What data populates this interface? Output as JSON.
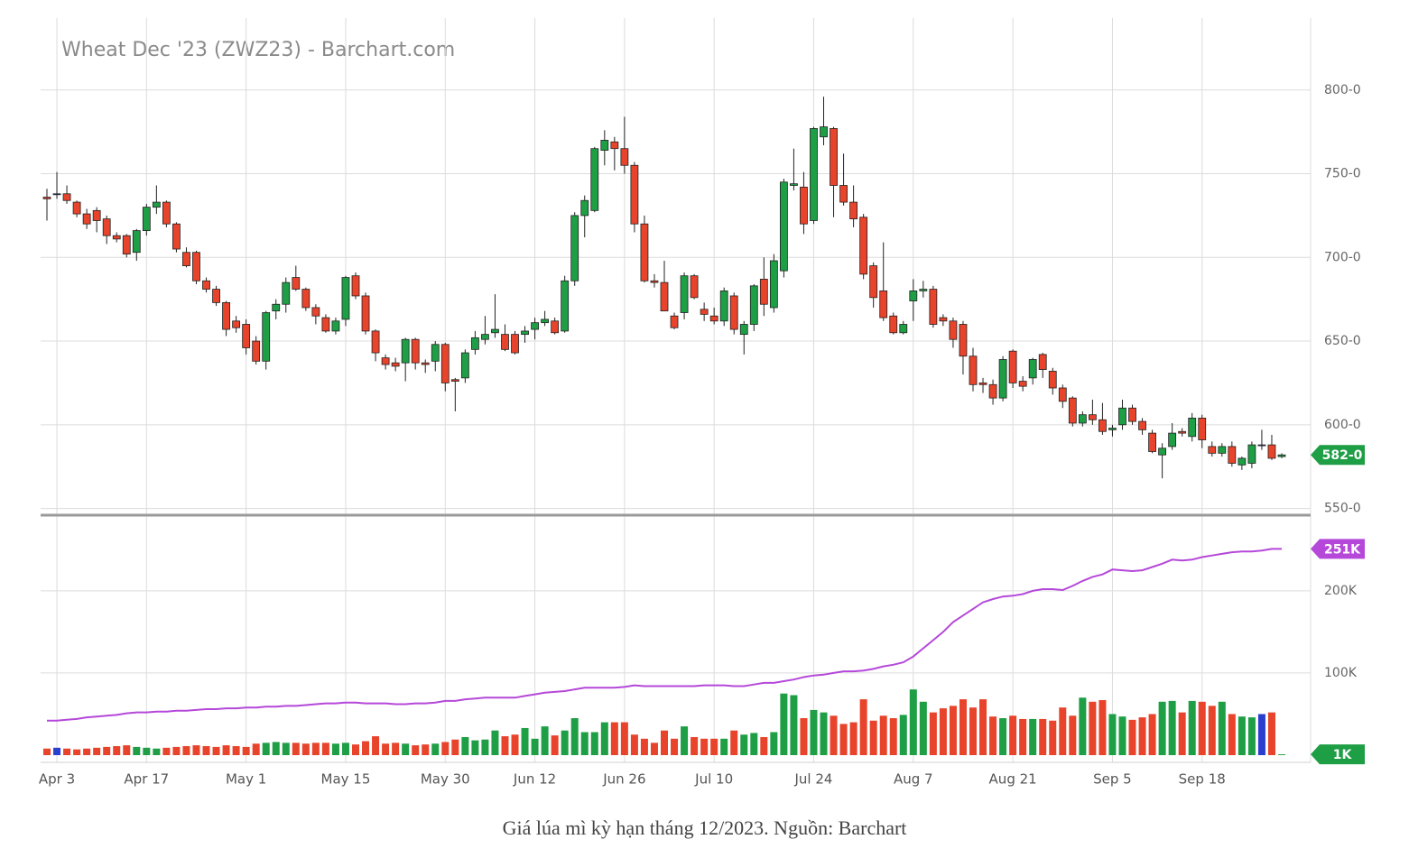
{
  "chart_data": {
    "type": "candlestick",
    "title": "Wheat Dec '23 (ZWZ23) - Barchart.com",
    "caption": "Giá lúa mì kỳ hạn tháng 12/2023. Nguồn: Barchart",
    "categories": [
      null,
      "Apr 3",
      null,
      null,
      null,
      null,
      null,
      null,
      null,
      null,
      "Apr 17",
      null,
      null,
      null,
      null,
      null,
      null,
      null,
      null,
      null,
      "May 1",
      null,
      null,
      null,
      null,
      null,
      null,
      null,
      null,
      null,
      "May 15",
      null,
      null,
      null,
      null,
      null,
      null,
      null,
      null,
      null,
      "May 30",
      null,
      null,
      null,
      null,
      null,
      null,
      null,
      null,
      "Jun 12",
      null,
      null,
      null,
      null,
      null,
      null,
      null,
      null,
      "Jun 26",
      null,
      null,
      null,
      null,
      null,
      null,
      null,
      null,
      "Jul 10",
      null,
      null,
      null,
      null,
      null,
      null,
      null,
      null,
      null,
      "Jul 24",
      null,
      null,
      null,
      null,
      null,
      null,
      null,
      null,
      null,
      "Aug 7",
      null,
      null,
      null,
      null,
      null,
      null,
      null,
      null,
      null,
      "Aug 21",
      null,
      null,
      null,
      null,
      null,
      null,
      null,
      null,
      null,
      "Sep 5",
      null,
      null,
      null,
      null,
      null,
      null,
      null,
      null,
      "Sep 18",
      null,
      null,
      null,
      null,
      null,
      null,
      null,
      null
    ],
    "ohlc": [
      [
        736,
        741,
        722,
        735
      ],
      [
        738,
        751,
        735,
        738
      ],
      [
        738,
        743,
        732,
        734
      ],
      [
        733,
        734,
        724,
        726
      ],
      [
        726,
        729,
        717,
        720
      ],
      [
        728,
        730,
        715,
        722
      ],
      [
        723,
        725,
        708,
        713
      ],
      [
        713,
        715,
        709,
        711
      ],
      [
        713,
        714,
        700,
        702
      ],
      [
        703,
        717,
        698,
        716
      ],
      [
        716,
        732,
        713,
        730
      ],
      [
        730,
        743,
        726,
        733
      ],
      [
        733,
        734,
        718,
        720
      ],
      [
        720,
        721,
        703,
        705
      ],
      [
        703,
        706,
        694,
        695
      ],
      [
        703,
        704,
        684,
        686
      ],
      [
        686,
        688,
        679,
        681
      ],
      [
        681,
        683,
        671,
        673
      ],
      [
        673,
        674,
        653,
        657
      ],
      [
        662,
        665,
        655,
        658
      ],
      [
        660,
        663,
        642,
        646
      ],
      [
        650,
        653,
        636,
        638
      ],
      [
        638,
        668,
        633,
        667
      ],
      [
        668,
        675,
        663,
        672
      ],
      [
        672,
        688,
        667,
        685
      ],
      [
        688,
        695,
        680,
        681
      ],
      [
        681,
        682,
        668,
        670
      ],
      [
        670,
        672,
        660,
        665
      ],
      [
        664,
        666,
        655,
        656
      ],
      [
        656,
        664,
        654,
        662
      ],
      [
        663,
        689,
        659,
        688
      ],
      [
        689,
        691,
        675,
        677
      ],
      [
        677,
        679,
        654,
        656
      ],
      [
        656,
        657,
        638,
        643
      ],
      [
        640,
        642,
        633,
        636
      ],
      [
        637,
        640,
        632,
        635
      ],
      [
        637,
        652,
        626,
        651
      ],
      [
        651,
        652,
        633,
        637
      ],
      [
        637,
        639,
        631,
        636
      ],
      [
        638,
        650,
        632,
        648
      ],
      [
        648,
        649,
        620,
        625
      ],
      [
        627,
        628,
        608,
        626
      ],
      [
        628,
        645,
        625,
        643
      ],
      [
        645,
        656,
        642,
        652
      ],
      [
        651,
        665,
        648,
        654
      ],
      [
        655,
        678,
        652,
        657
      ],
      [
        654,
        660,
        644,
        645
      ],
      [
        654,
        656,
        642,
        643
      ],
      [
        654,
        659,
        649,
        656
      ],
      [
        657,
        664,
        651,
        661
      ],
      [
        661,
        668,
        659,
        663
      ],
      [
        662,
        664,
        654,
        655
      ],
      [
        656,
        689,
        655,
        686
      ],
      [
        686,
        727,
        683,
        725
      ],
      [
        725,
        737,
        712,
        734
      ],
      [
        728,
        766,
        727,
        765
      ],
      [
        764,
        776,
        755,
        770
      ],
      [
        769,
        772,
        752,
        765
      ],
      [
        765,
        784,
        750,
        755
      ],
      [
        755,
        757,
        715,
        720
      ],
      [
        720,
        725,
        685,
        686
      ],
      [
        686,
        690,
        682,
        685
      ],
      [
        685,
        698,
        668,
        668
      ],
      [
        665,
        667,
        657,
        658
      ],
      [
        667,
        691,
        663,
        689
      ],
      [
        689,
        690,
        675,
        676
      ],
      [
        669,
        673,
        662,
        666
      ],
      [
        665,
        670,
        660,
        662
      ],
      [
        662,
        682,
        659,
        680
      ],
      [
        677,
        679,
        654,
        657
      ],
      [
        654,
        662,
        642,
        660
      ],
      [
        660,
        684,
        656,
        683
      ],
      [
        687,
        700,
        665,
        672
      ],
      [
        670,
        702,
        667,
        698
      ],
      [
        692,
        747,
        688,
        745
      ],
      [
        743,
        765,
        740,
        744
      ],
      [
        742,
        751,
        714,
        720
      ],
      [
        722,
        778,
        720,
        777
      ],
      [
        772,
        796,
        767,
        778
      ],
      [
        777,
        778,
        724,
        743
      ],
      [
        743,
        762,
        731,
        733
      ],
      [
        733,
        743,
        718,
        723
      ],
      [
        724,
        726,
        687,
        690
      ],
      [
        695,
        697,
        670,
        676
      ],
      [
        680,
        709,
        662,
        664
      ],
      [
        665,
        667,
        654,
        655
      ],
      [
        655,
        662,
        654,
        660
      ],
      [
        674,
        687,
        662,
        680
      ],
      [
        680,
        686,
        676,
        681
      ],
      [
        681,
        683,
        658,
        660
      ],
      [
        664,
        666,
        659,
        662
      ],
      [
        662,
        664,
        646,
        651
      ],
      [
        660,
        662,
        630,
        641
      ],
      [
        641,
        646,
        620,
        624
      ],
      [
        625,
        628,
        619,
        624
      ],
      [
        624,
        627,
        612,
        616
      ],
      [
        616,
        641,
        614,
        639
      ],
      [
        644,
        645,
        622,
        625
      ],
      [
        626,
        629,
        620,
        623
      ],
      [
        628,
        640,
        624,
        639
      ],
      [
        642,
        643,
        628,
        633
      ],
      [
        632,
        634,
        618,
        622
      ],
      [
        622,
        624,
        610,
        614
      ],
      [
        616,
        617,
        599,
        601
      ],
      [
        601,
        608,
        599,
        606
      ],
      [
        606,
        615,
        600,
        603
      ],
      [
        603,
        613,
        594,
        596
      ],
      [
        597,
        600,
        593,
        598
      ],
      [
        600,
        615,
        597,
        610
      ],
      [
        610,
        612,
        600,
        602
      ],
      [
        602,
        604,
        594,
        597
      ],
      [
        595,
        597,
        583,
        584
      ],
      [
        582,
        589,
        568,
        586
      ],
      [
        587,
        601,
        585,
        595
      ],
      [
        596,
        598,
        593,
        595
      ],
      [
        593,
        607,
        590,
        604
      ],
      [
        604,
        606,
        586,
        591
      ],
      [
        587,
        590,
        581,
        583
      ],
      [
        583,
        589,
        581,
        587
      ],
      [
        587,
        590,
        575,
        577
      ],
      [
        576,
        581,
        573,
        580
      ],
      [
        577,
        590,
        574,
        588
      ],
      [
        588,
        597,
        585,
        588
      ],
      [
        588,
        594,
        579,
        580
      ],
      [
        581,
        583,
        580,
        582
      ]
    ],
    "volume": [
      8000,
      9000,
      8000,
      7000,
      8000,
      9000,
      10000,
      11000,
      12000,
      10000,
      9000,
      8000,
      9000,
      10000,
      11000,
      12000,
      11000,
      10000,
      12000,
      11000,
      10000,
      14000,
      15000,
      16000,
      15000,
      15000,
      14000,
      15000,
      15000,
      14000,
      15000,
      13000,
      17000,
      23000,
      14000,
      15000,
      14000,
      12000,
      13000,
      14000,
      16000,
      19000,
      22000,
      18000,
      19000,
      30000,
      23000,
      25000,
      33000,
      20000,
      35000,
      24000,
      30000,
      45000,
      28000,
      28000,
      40000,
      40000,
      40000,
      25000,
      20000,
      15000,
      30000,
      20000,
      35000,
      22000,
      20000,
      20000,
      20000,
      30000,
      25000,
      27000,
      22000,
      28000,
      75000,
      73000,
      45000,
      55000,
      52000,
      48000,
      38000,
      40000,
      68000,
      42000,
      48000,
      45000,
      49000,
      80000,
      65000,
      52000,
      57000,
      60000,
      68000,
      58000,
      68000,
      47000,
      45000,
      48000,
      44000,
      44000,
      44000,
      42000,
      58000,
      48000,
      70000,
      65000,
      67000,
      50000,
      47000,
      43000,
      46000,
      50000,
      65000,
      66000,
      52000,
      66000,
      65000,
      60000,
      65000,
      50000,
      47000,
      46000,
      50000,
      52000,
      1000
    ],
    "open_interest": [
      42000,
      42000,
      43000,
      44000,
      46000,
      47000,
      48000,
      49000,
      51000,
      52000,
      52000,
      53000,
      53000,
      54000,
      54000,
      55000,
      56000,
      56000,
      57000,
      57000,
      58000,
      58000,
      59000,
      59000,
      60000,
      60000,
      61000,
      62000,
      63000,
      63000,
      64000,
      64000,
      63000,
      63000,
      63000,
      62000,
      62000,
      63000,
      63000,
      64000,
      66000,
      66000,
      68000,
      69000,
      70000,
      70000,
      70000,
      70000,
      72000,
      74000,
      76000,
      77000,
      78000,
      80000,
      82000,
      82000,
      82000,
      82000,
      83000,
      85000,
      84000,
      84000,
      84000,
      84000,
      84000,
      84000,
      85000,
      85000,
      85000,
      84000,
      84000,
      86000,
      88000,
      88000,
      90000,
      92000,
      95000,
      97000,
      98000,
      100000,
      102000,
      102000,
      103000,
      105000,
      108000,
      110000,
      113000,
      120000,
      130000,
      140000,
      150000,
      162000,
      170000,
      178000,
      186000,
      190000,
      193000,
      194000,
      196000,
      200000,
      202000,
      202000,
      201000,
      206000,
      212000,
      217000,
      220000,
      226000,
      225000,
      224000,
      225000,
      229000,
      233000,
      238000,
      237000,
      238000,
      241000,
      243000,
      245000,
      247000,
      248000,
      248000,
      249000,
      251000,
      251000
    ],
    "ylim": [
      546,
      843
    ],
    "yticks": [
      {
        "value": 550,
        "label": "550-0"
      },
      {
        "value": 600,
        "label": "600-0"
      },
      {
        "value": 650,
        "label": "650-0"
      },
      {
        "value": 700,
        "label": "700-0"
      },
      {
        "value": 750,
        "label": "750-0"
      },
      {
        "value": 800,
        "label": "800-0"
      }
    ],
    "y2lim": [
      0,
      291000
    ],
    "y2ticks": [
      {
        "value": 100000,
        "label": "100K"
      },
      {
        "value": 200000,
        "label": "200K"
      }
    ],
    "last_price": {
      "value": 582,
      "label": "582-0"
    },
    "last_open_interest": {
      "value": 251000,
      "label": "251K"
    },
    "last_volume": {
      "value": 1000,
      "label": "1K"
    },
    "up_color": "#1e9e45",
    "down_color": "#e8432b",
    "flat_color": "#2b3fcf",
    "oi_color": "#b548d9",
    "grid": true
  }
}
